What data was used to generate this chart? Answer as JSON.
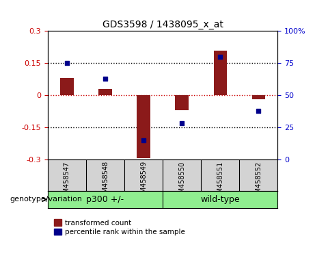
{
  "title": "GDS3598 / 1438095_x_at",
  "samples": [
    "GSM458547",
    "GSM458548",
    "GSM458549",
    "GSM458550",
    "GSM458551",
    "GSM458552"
  ],
  "transformed_count": [
    0.08,
    0.03,
    -0.295,
    -0.07,
    0.21,
    -0.02
  ],
  "percentile_rank": [
    75,
    63,
    15,
    28,
    80,
    38
  ],
  "ylim_left": [
    -0.3,
    0.3
  ],
  "ylim_right": [
    0,
    100
  ],
  "yticks_left": [
    -0.3,
    -0.15,
    0,
    0.15,
    0.3
  ],
  "yticks_right": [
    0,
    25,
    50,
    75,
    100
  ],
  "ytick_right_labels": [
    "0",
    "25",
    "50",
    "75",
    "100%"
  ],
  "bar_color": "#8B1A1A",
  "dot_color": "#00008B",
  "hline_color": "#CC0000",
  "grid_color": "#000000",
  "legend_label_bar": "transformed count",
  "legend_label_dot": "percentile rank within the sample",
  "genotype_label": "genotype/variation",
  "group_labels": [
    "p300 +/-",
    "wild-type"
  ],
  "group_color": "#90EE90"
}
